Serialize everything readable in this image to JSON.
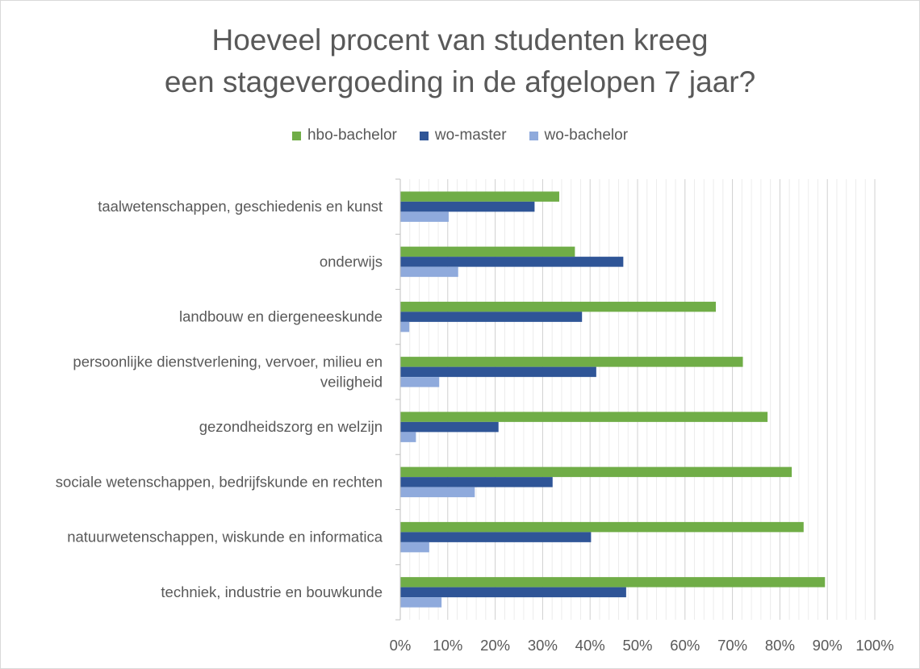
{
  "chart_data": {
    "type": "bar",
    "orientation": "horizontal",
    "title_lines": [
      "Hoeveel procent van studenten kreeg",
      "een stagevergoeding in de afgelopen 7 jaar?"
    ],
    "categories": [
      [
        "taalwetenschappen, geschiedenis en kunst"
      ],
      [
        "onderwijs"
      ],
      [
        "landbouw en diergeneeskunde"
      ],
      [
        "persoonlijke dienstverlening, vervoer, milieu en",
        "veiligheid"
      ],
      [
        "gezondheidszorg en welzijn"
      ],
      [
        "sociale wetenschappen, bedrijfskunde en rechten"
      ],
      [
        "natuurwetenschappen, wiskunde en informatica"
      ],
      [
        "techniek, industrie en bouwkunde"
      ]
    ],
    "series": [
      {
        "name": "hbo-bachelor",
        "color": "#70ad47",
        "values": [
          33.5,
          36.8,
          66.5,
          72.2,
          77.4,
          82.5,
          85.0,
          89.5
        ]
      },
      {
        "name": "wo-master",
        "color": "#2f5597",
        "values": [
          28.3,
          47.0,
          38.3,
          41.3,
          20.7,
          32.1,
          40.2,
          47.6
        ]
      },
      {
        "name": "wo-bachelor",
        "color": "#8faadc",
        "values": [
          10.2,
          12.2,
          1.9,
          8.2,
          3.3,
          15.7,
          6.1,
          8.7
        ]
      }
    ],
    "xlim": [
      0,
      100
    ],
    "x_ticks": [
      "0%",
      "10%",
      "20%",
      "30%",
      "40%",
      "50%",
      "60%",
      "70%",
      "80%",
      "90%",
      "100%"
    ],
    "grid": true,
    "legend_position": "top"
  }
}
